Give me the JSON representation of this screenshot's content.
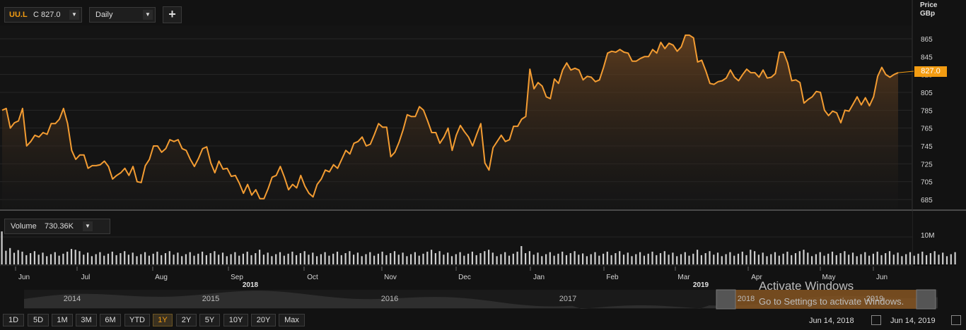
{
  "toolbar": {
    "symbol": "UU.L",
    "symbol_value": "C 827.0",
    "interval": "Daily",
    "add_label": "+"
  },
  "price_axis": {
    "title_line1": "Price",
    "title_line2": "GBp",
    "last_price_label": "827.0"
  },
  "volume_panel": {
    "label": "Volume",
    "value": "730.36K",
    "axis_label": "10M"
  },
  "navigator": {
    "years": [
      "2014",
      "2015",
      "2016",
      "2017",
      "2018",
      "2019"
    ]
  },
  "range_buttons": [
    {
      "label": "1D",
      "active": false
    },
    {
      "label": "5D",
      "active": false
    },
    {
      "label": "1M",
      "active": false
    },
    {
      "label": "3M",
      "active": false
    },
    {
      "label": "6M",
      "active": false
    },
    {
      "label": "YTD",
      "active": false
    },
    {
      "label": "1Y",
      "active": true
    },
    {
      "label": "2Y",
      "active": false
    },
    {
      "label": "5Y",
      "active": false
    },
    {
      "label": "10Y",
      "active": false
    },
    {
      "label": "20Y",
      "active": false
    },
    {
      "label": "Max",
      "active": false
    }
  ],
  "date_range": {
    "start": "Jun 14, 2018",
    "end": "Jun 14, 2019"
  },
  "watermark": {
    "line1": "Activate Windows",
    "line2": "Go to Settings to activate Windows."
  },
  "colors": {
    "line": "#f39c32",
    "fill": "#4a3118",
    "volume": "#cfcfcf",
    "accent": "#f39c12"
  },
  "chart_data": {
    "type": "line",
    "y_ticks": [
      685,
      705,
      725,
      745,
      765,
      785,
      805,
      825,
      845,
      865
    ],
    "ylim": [
      675,
      878
    ],
    "x_months": [
      "Jun",
      "Jul",
      "Aug",
      "Sep",
      "Oct",
      "Nov",
      "Dec",
      "Jan",
      "Feb",
      "Mar",
      "Apr",
      "May",
      "Jun"
    ],
    "x_years": [
      "2018",
      "2019"
    ],
    "price_values": [
      785,
      787,
      765,
      771,
      773,
      787,
      745,
      750,
      757,
      755,
      760,
      758,
      770,
      770,
      775,
      787,
      770,
      740,
      730,
      735,
      735,
      720,
      723,
      723,
      724,
      728,
      722,
      708,
      712,
      715,
      720,
      712,
      722,
      705,
      704,
      723,
      730,
      745,
      745,
      738,
      742,
      752,
      750,
      752,
      742,
      740,
      730,
      722,
      731,
      742,
      744,
      726,
      715,
      728,
      719,
      720,
      711,
      712,
      703,
      692,
      702,
      690,
      696,
      686,
      686,
      697,
      710,
      712,
      722,
      710,
      696,
      702,
      698,
      712,
      700,
      692,
      688,
      702,
      708,
      718,
      716,
      724,
      720,
      730,
      740,
      736,
      748,
      750,
      755,
      745,
      747,
      758,
      770,
      766,
      766,
      733,
      738,
      749,
      763,
      780,
      778,
      778,
      789,
      785,
      773,
      760,
      760,
      748,
      755,
      765,
      740,
      757,
      768,
      761,
      755,
      745,
      758,
      770,
      726,
      718,
      743,
      750,
      757,
      750,
      752,
      767,
      767,
      775,
      778,
      831,
      809,
      816,
      812,
      800,
      798,
      820,
      815,
      830,
      838,
      830,
      832,
      830,
      819,
      823,
      822,
      817,
      819,
      833,
      849,
      851,
      850,
      853,
      850,
      849,
      840,
      840,
      843,
      845,
      845,
      853,
      849,
      861,
      854,
      860,
      858,
      851,
      856,
      869,
      869,
      866,
      839,
      841,
      829,
      815,
      814,
      817,
      818,
      821,
      830,
      822,
      818,
      825,
      831,
      827,
      827,
      822,
      830,
      821,
      822,
      826,
      850,
      850,
      838,
      818,
      819,
      816,
      793,
      797,
      800,
      806,
      805,
      785,
      779,
      784,
      782,
      771,
      785,
      784,
      792,
      800,
      791,
      799,
      790,
      800,
      823,
      833,
      825,
      822,
      825,
      827
    ],
    "volume_values": [
      9,
      4,
      4,
      4,
      4,
      3,
      3,
      3,
      3,
      3,
      3,
      3,
      3,
      3,
      3,
      3,
      3,
      5,
      3,
      3,
      3,
      3,
      3,
      3,
      3,
      3,
      3,
      3,
      3,
      3,
      3,
      3,
      3,
      3,
      3,
      3,
      3,
      3,
      3,
      3,
      3,
      3,
      3,
      3,
      3,
      3,
      3,
      3,
      3,
      3,
      3,
      3,
      3,
      3,
      3,
      3,
      3,
      3,
      3,
      3,
      3,
      3,
      3,
      3,
      3,
      3,
      3,
      3,
      3,
      3,
      3,
      3,
      3,
      3,
      3,
      3,
      3,
      3,
      3,
      3,
      3,
      3,
      3,
      3,
      3,
      3,
      3,
      3,
      3,
      3,
      3,
      3,
      3,
      3,
      3,
      3,
      3,
      3,
      3,
      3,
      3,
      3,
      3,
      3,
      3,
      3,
      3,
      3,
      3,
      3,
      3,
      3,
      3,
      3,
      3,
      3,
      3,
      3,
      3,
      3,
      3,
      3,
      3,
      3,
      3,
      3,
      3,
      3,
      3,
      3,
      3,
      3,
      3,
      3,
      3,
      3,
      3,
      3,
      3,
      3,
      3,
      3,
      3,
      3,
      3,
      3,
      3,
      3,
      3,
      3,
      3,
      3,
      3,
      3,
      3,
      3,
      3,
      3,
      3,
      3,
      3,
      3,
      3,
      3,
      3,
      3,
      3,
      3,
      3,
      3,
      3,
      3,
      3,
      3,
      3,
      3,
      3,
      3,
      3,
      3,
      3,
      3,
      3,
      3,
      3,
      3,
      3,
      3,
      3,
      3,
      3,
      3,
      3,
      3,
      3,
      3,
      3,
      3,
      3,
      3,
      3,
      3,
      3,
      3,
      3,
      3,
      3,
      3,
      3,
      3,
      3,
      3,
      3,
      3,
      3,
      3,
      3,
      3,
      3,
      3,
      3,
      3,
      3,
      3,
      3,
      3,
      3,
      3,
      3,
      3,
      3,
      3,
      3,
      3
    ],
    "volume_scale_label": "10M",
    "volume_max": 12
  }
}
